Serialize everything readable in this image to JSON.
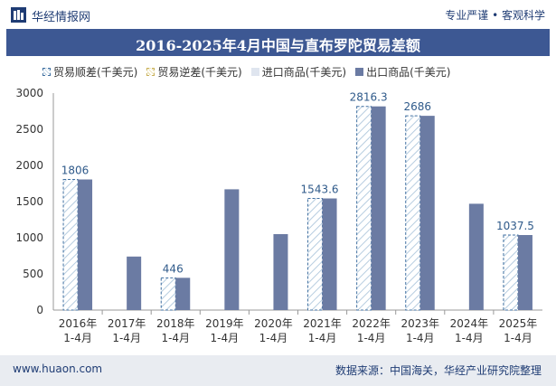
{
  "header": {
    "site_name": "华经情报网",
    "tagline": "专业严谨 • 客观科学"
  },
  "footer": {
    "url": "www.huaon.com",
    "source": "数据来源：中国海关，华经产业研究院整理"
  },
  "chart_data": {
    "type": "bar",
    "title": "2016-2025年4月中国与直布罗陀贸易差额",
    "categories": [
      "2016年\n1-4月",
      "2017年\n1-4月",
      "2018年\n1-4月",
      "2019年\n1-4月",
      "2020年\n1-4月",
      "2021年\n1-4月",
      "2022年\n1-4月",
      "2023年\n1-4月",
      "2024年\n1-4月",
      "2025年\n1-4月"
    ],
    "series": [
      {
        "name": "贸易顺差(千美元)",
        "values": [
          1806,
          null,
          446,
          null,
          null,
          1543.6,
          2816.3,
          2686,
          null,
          1037.5
        ],
        "labels": [
          "1806",
          "",
          "446",
          "",
          "",
          "1543.6",
          "2816.3",
          "2686",
          "",
          "1037.5"
        ],
        "color": "#3f6fa0"
      },
      {
        "name": "贸易逆差(千美元)",
        "values": [
          null,
          null,
          null,
          null,
          null,
          null,
          null,
          null,
          null,
          null
        ],
        "color": "#c9b15a"
      },
      {
        "name": "进口商品(千美元)",
        "values": [
          0,
          0,
          0,
          0,
          0,
          0,
          0,
          0,
          0,
          0
        ],
        "color": "#dfe5ef"
      },
      {
        "name": "出口商品(千美元)",
        "values": [
          1806,
          740,
          446,
          1670,
          1050,
          1543.6,
          2816.3,
          2686,
          1470,
          1037.5
        ],
        "color": "#6b7ba3"
      }
    ],
    "ylim": [
      0,
      3000
    ],
    "yticks": [
      "0",
      "500",
      "1000",
      "1500",
      "2000",
      "2500",
      "3000"
    ],
    "legend_position": "top",
    "grid": false
  }
}
